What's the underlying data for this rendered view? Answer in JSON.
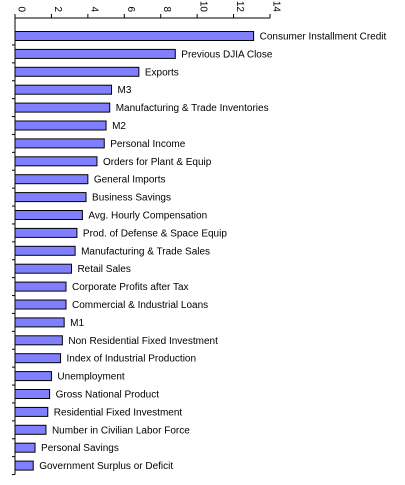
{
  "chart_data": {
    "type": "bar",
    "orientation": "horizontal",
    "title": "",
    "xlabel": "",
    "ylabel": "",
    "xlim": [
      0,
      14
    ],
    "x_ticks": [
      0,
      2,
      4,
      6,
      8,
      10,
      12,
      14
    ],
    "x_tick_labels": [
      "0",
      "2",
      "4",
      "6",
      "8",
      "10",
      "12",
      "14"
    ],
    "x_axis_position": "top",
    "bar_color": "#8080ff",
    "bar_edge_color": "#000000",
    "grid": false,
    "legend": "none",
    "categories": [
      "Consumer Installment Credit",
      "Previous DJIA Close",
      "Exports",
      "M3",
      "Manufacturing & Trade Inventories",
      "M2",
      "Personal Income",
      "Orders for Plant & Equip",
      "General Imports",
      "Business Savings",
      "Avg. Hourly Compensation",
      "Prod. of Defense & Space Equip",
      "Manufacturing & Trade Sales",
      "Retail Sales",
      "Corporate Profits after Tax",
      "Commercial & Industrial Loans",
      "M1",
      "Non Residential Fixed Investment",
      "Index of Industrial Production",
      "Unemployment",
      "Gross National Product",
      "Residential Fixed Investment",
      "Number in Civilian Labor Force",
      "Personal Savings",
      "Government Surplus or Deficit"
    ],
    "values": [
      13.1,
      8.8,
      6.8,
      5.3,
      5.2,
      5.0,
      4.9,
      4.5,
      4.0,
      3.9,
      3.7,
      3.4,
      3.3,
      3.1,
      2.8,
      2.8,
      2.7,
      2.6,
      2.5,
      2.0,
      1.9,
      1.8,
      1.7,
      1.1,
      1.0
    ]
  }
}
